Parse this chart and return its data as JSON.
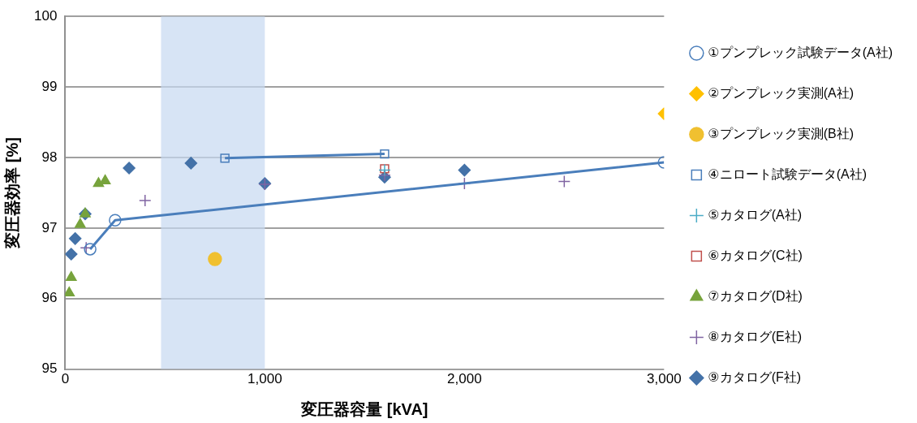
{
  "chart_data": {
    "type": "scatter",
    "xlabel": "変圧器容量 [kVA]",
    "ylabel": "変圧器効率 [%]",
    "xlim": [
      0,
      3000
    ],
    "xticks": [
      {
        "value": 0,
        "label": "0"
      },
      {
        "value": 1000,
        "label": "1,000"
      },
      {
        "value": 2000,
        "label": "2,000"
      },
      {
        "value": 3000,
        "label": "3,000"
      }
    ],
    "ylim": [
      95,
      100
    ],
    "yticks": [
      95,
      96,
      97,
      98,
      99,
      100
    ],
    "grid": "y",
    "legend": "right",
    "bands": [
      {
        "axis": "x",
        "from": 480,
        "to": 1000,
        "color": "#c6d9f1"
      }
    ],
    "series": [
      {
        "name": "①プンプレック試験データ(A社)",
        "type": "line",
        "marker": "circle",
        "color": "#4a7ebb",
        "x": [
          125,
          250,
          3000
        ],
        "values": [
          96.7,
          97.11,
          97.93
        ]
      },
      {
        "name": "②プンプレック実測(A社)",
        "type": "scatter",
        "marker": "diamond",
        "color": "#ffc000",
        "x": [
          3000
        ],
        "values": [
          98.62
        ]
      },
      {
        "name": "③プンプレック実測(B社)",
        "type": "scatter",
        "marker": "circle",
        "color": "#f0c030",
        "x": [
          750
        ],
        "values": [
          96.56
        ]
      },
      {
        "name": "④ニロート試験データ(A社)",
        "type": "line",
        "marker": "square",
        "color": "#4a7ebb",
        "x": [
          800,
          1600
        ],
        "values": [
          97.99,
          98.05
        ]
      },
      {
        "name": "⑤カタログ(A社)",
        "type": "scatter",
        "marker": "cross",
        "color": "#4bacc6",
        "x": [
          1600
        ],
        "values": [
          97.82
        ]
      },
      {
        "name": "⑥カタログ(C社)",
        "type": "scatter",
        "marker": "square",
        "color": "#c0504d",
        "x": [
          1600
        ],
        "values": [
          97.84
        ]
      },
      {
        "name": "⑦カタログ(D社)",
        "type": "scatter",
        "marker": "triangle",
        "color": "#77a33c",
        "x": [
          20,
          30,
          75,
          100,
          167,
          200
        ],
        "values": [
          96.08,
          96.3,
          97.05,
          97.2,
          97.63,
          97.67
        ]
      },
      {
        "name": "⑧カタログ(E社)",
        "type": "scatter",
        "marker": "cross",
        "color": "#8064a2",
        "x": [
          105,
          400,
          1000,
          1600,
          2000,
          2500
        ],
        "values": [
          96.72,
          97.39,
          97.62,
          97.75,
          97.63,
          97.66
        ]
      },
      {
        "name": "⑨カタログ(F社)",
        "type": "scatter",
        "marker": "diamond",
        "color": "#4472a8",
        "x": [
          30,
          50,
          100,
          320,
          630,
          1000,
          1600,
          2000
        ],
        "values": [
          96.63,
          96.85,
          97.2,
          97.85,
          97.92,
          97.63,
          97.72,
          97.82
        ]
      }
    ]
  }
}
